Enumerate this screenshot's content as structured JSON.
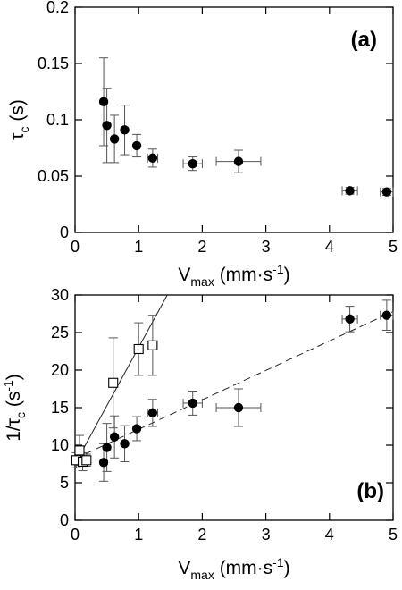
{
  "chart_data": [
    {
      "type": "scatter",
      "panel_label": "(a)",
      "xlabel": "V",
      "xlabel_sub": "max",
      "xlabel_unit": "(mm·s",
      "xlabel_unit_sup": "-1",
      "xlabel_unit_end": ")",
      "ylabel": "τ",
      "ylabel_sub": "c",
      "ylabel_unit": "(s)",
      "xlim": [
        0,
        5
      ],
      "ylim": [
        0,
        0.2
      ],
      "xticks": [
        0,
        1,
        2,
        3,
        4,
        5
      ],
      "yticks": [
        0,
        0.05,
        0.1,
        0.15,
        0.2
      ],
      "ytick_labels": [
        "0",
        "0.05",
        "0.1",
        "0.15",
        "0.2"
      ],
      "grid": false,
      "series": [
        {
          "marker": "filled-circle",
          "points": [
            {
              "x": 0.45,
              "y": 0.116,
              "yerr": 0.039,
              "xerr": 0
            },
            {
              "x": 0.5,
              "y": 0.095,
              "yerr": 0.033,
              "xerr": 0
            },
            {
              "x": 0.62,
              "y": 0.083,
              "yerr": 0.021,
              "xerr": 0
            },
            {
              "x": 0.78,
              "y": 0.091,
              "yerr": 0.022,
              "xerr": 0
            },
            {
              "x": 0.97,
              "y": 0.077,
              "yerr": 0.01,
              "xerr": 0
            },
            {
              "x": 1.22,
              "y": 0.066,
              "yerr": 0.008,
              "xerr": 0.08
            },
            {
              "x": 1.85,
              "y": 0.061,
              "yerr": 0.006,
              "xerr": 0.15
            },
            {
              "x": 2.57,
              "y": 0.063,
              "yerr": 0.01,
              "xerr": 0.35
            },
            {
              "x": 4.32,
              "y": 0.037,
              "yerr": 0.003,
              "xerr": 0.12
            },
            {
              "x": 4.9,
              "y": 0.036,
              "yerr": 0.003,
              "xerr": 0.1
            }
          ]
        }
      ]
    },
    {
      "type": "scatter",
      "panel_label": "(b)",
      "xlabel": "V",
      "xlabel_sub": "max",
      "xlabel_unit": "(mm·s",
      "xlabel_unit_sup": "-1",
      "xlabel_unit_end": ")",
      "ylabel": "1/τ",
      "ylabel_sub": "c",
      "ylabel_unit": "(s",
      "ylabel_unit_sup": "-1",
      "ylabel_unit_end": ")",
      "xlim": [
        0,
        5
      ],
      "ylim": [
        0,
        30
      ],
      "xticks": [
        0,
        1,
        2,
        3,
        4,
        5
      ],
      "yticks": [
        0,
        5,
        10,
        15,
        20,
        25,
        30
      ],
      "ytick_labels": [
        "0",
        "5",
        "10",
        "15",
        "20",
        "25",
        "30"
      ],
      "grid": false,
      "series": [
        {
          "marker": "filled-circle",
          "points": [
            {
              "x": 0.45,
              "y": 7.7,
              "yerr": 2.5,
              "xerr": 0
            },
            {
              "x": 0.5,
              "y": 9.7,
              "yerr": 3.2,
              "xerr": 0
            },
            {
              "x": 0.62,
              "y": 11.1,
              "yerr": 2.8,
              "xerr": 0
            },
            {
              "x": 0.78,
              "y": 10.2,
              "yerr": 2.4,
              "xerr": 0
            },
            {
              "x": 0.97,
              "y": 12.2,
              "yerr": 1.6,
              "xerr": 0
            },
            {
              "x": 1.22,
              "y": 14.3,
              "yerr": 1.8,
              "xerr": 0.08
            },
            {
              "x": 1.85,
              "y": 15.6,
              "yerr": 1.6,
              "xerr": 0.15
            },
            {
              "x": 2.57,
              "y": 15.0,
              "yerr": 2.5,
              "xerr": 0.35
            },
            {
              "x": 4.32,
              "y": 26.8,
              "yerr": 1.7,
              "xerr": 0.12
            },
            {
              "x": 4.9,
              "y": 27.3,
              "yerr": 2.0,
              "xerr": 0.1
            }
          ]
        },
        {
          "marker": "open-square",
          "points": [
            {
              "x": 0.02,
              "y": 8.0,
              "yerr": 1.0,
              "xerr": 0
            },
            {
              "x": 0.07,
              "y": 9.3,
              "yerr": 2.0,
              "xerr": 0
            },
            {
              "x": 0.12,
              "y": 7.8,
              "yerr": 1.2,
              "xerr": 0
            },
            {
              "x": 0.18,
              "y": 8.0,
              "yerr": 0.8,
              "xerr": 0
            },
            {
              "x": 0.6,
              "y": 18.3,
              "yerr": 6.0,
              "xerr": 0
            },
            {
              "x": 1.0,
              "y": 22.8,
              "yerr": 3.5,
              "xerr": 0
            },
            {
              "x": 1.22,
              "y": 23.3,
              "yerr": 4.0,
              "xerr": 0
            }
          ]
        },
        {
          "type": "line",
          "style": "solid",
          "points": [
            {
              "x": 0.0,
              "y": 7.5
            },
            {
              "x": 1.45,
              "y": 30.0
            }
          ]
        },
        {
          "type": "line",
          "style": "dashed",
          "points": [
            {
              "x": 0.0,
              "y": 8.2
            },
            {
              "x": 5.0,
              "y": 27.8
            }
          ]
        }
      ]
    }
  ]
}
